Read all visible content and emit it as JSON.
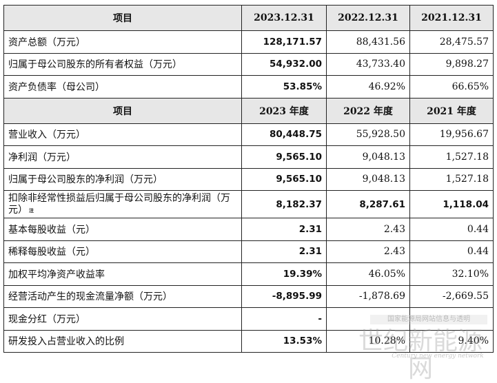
{
  "table": {
    "header1": [
      "项目",
      "2023.12.31",
      "2022.12.31",
      "2021.12.31"
    ],
    "balance_rows": [
      {
        "label": "资产总额（万元）",
        "v2023": "128,171.57",
        "v2022": "88,431.56",
        "v2021": "28,475.57"
      },
      {
        "label": "归属于母公司股东的所有者权益（万元）",
        "v2023": "54,932.00",
        "v2022": "43,733.40",
        "v2021": "9,898.27"
      },
      {
        "label": "资产负债率（母公司）",
        "v2023": "53.85%",
        "v2022": "46.92%",
        "v2021": "66.65%"
      }
    ],
    "header2": [
      "项目",
      "2023 年度",
      "2022 年度",
      "2021 年度"
    ],
    "income_rows": [
      {
        "label": "营业收入（万元）",
        "v2023": "80,448.75",
        "v2022": "55,928.50",
        "v2021": "19,956.67"
      },
      {
        "label": "净利润（万元）",
        "v2023": "9,565.10",
        "v2022": "9,048.13",
        "v2021": "1,527.18"
      },
      {
        "label": "归属于母公司股东的净利润（万元）",
        "v2023": "9,565.10",
        "v2022": "9,048.13",
        "v2021": "1,527.18"
      },
      {
        "label": "扣除非经常性损益后归属于母公司股东的净利润（万元）",
        "note": "注",
        "v2023": "8,182.37",
        "v2022": "8,287.61",
        "v2021": "1,118.04"
      },
      {
        "label": "基本每股收益（元）",
        "v2023": "2.31",
        "v2022": "2.43",
        "v2021": "0.44"
      },
      {
        "label": "稀释每股收益（元）",
        "v2023": "2.31",
        "v2022": "2.43",
        "v2021": "0.44"
      },
      {
        "label": "加权平均净资产收益率",
        "v2023": "19.39%",
        "v2022": "46.05%",
        "v2021": "32.10%"
      },
      {
        "label": "经营活动产生的现金流量净额（万元）",
        "v2023": "-8,895.99",
        "v2022": "-1,878.69",
        "v2021": "-2,669.55"
      },
      {
        "label": "现金分红（万元）",
        "v2023": "-",
        "v2022": "",
        "v2021": ""
      },
      {
        "label": "研发投入占营业收入的比例",
        "v2023": "13.53%",
        "v2022": "10.28%",
        "v2021": "9.40%"
      }
    ]
  },
  "watermark": {
    "small": "国家能源局网站信息与透明",
    "big": "世纪新能源网",
    "en": "Century new energy network"
  }
}
